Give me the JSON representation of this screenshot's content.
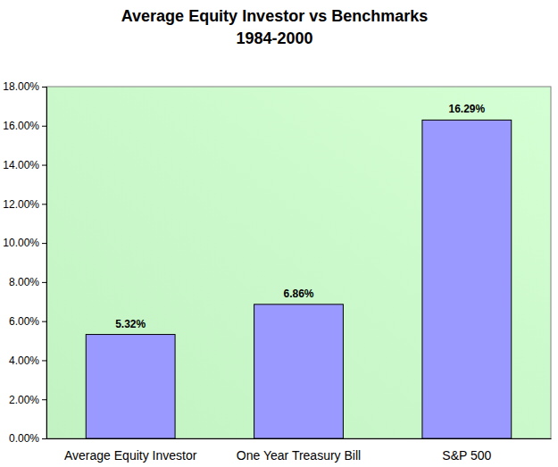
{
  "chart_data": {
    "type": "bar",
    "title": "Average Equity Investor vs Benchmarks",
    "subtitle": "1984-2000",
    "categories": [
      "Average Equity Investor",
      "One Year Treasury Bill",
      "S&P 500"
    ],
    "values": [
      5.32,
      6.86,
      16.29
    ],
    "value_labels": [
      "5.32%",
      "6.86%",
      "16.29%"
    ],
    "color": "#9999ff",
    "ylim": [
      0,
      18
    ],
    "yticks": [
      {
        "value": 0,
        "label": "0.00%"
      },
      {
        "value": 2,
        "label": "2.00%"
      },
      {
        "value": 4,
        "label": "4.00%"
      },
      {
        "value": 6,
        "label": "6.00%"
      },
      {
        "value": 8,
        "label": "8.00%"
      },
      {
        "value": 10,
        "label": "10.00%"
      },
      {
        "value": 12,
        "label": "12.00%"
      },
      {
        "value": 14,
        "label": "14.00%"
      },
      {
        "value": 16,
        "label": "16.00%"
      },
      {
        "value": 18,
        "label": "18.00%"
      }
    ],
    "grid": false,
    "data_labels": true
  }
}
